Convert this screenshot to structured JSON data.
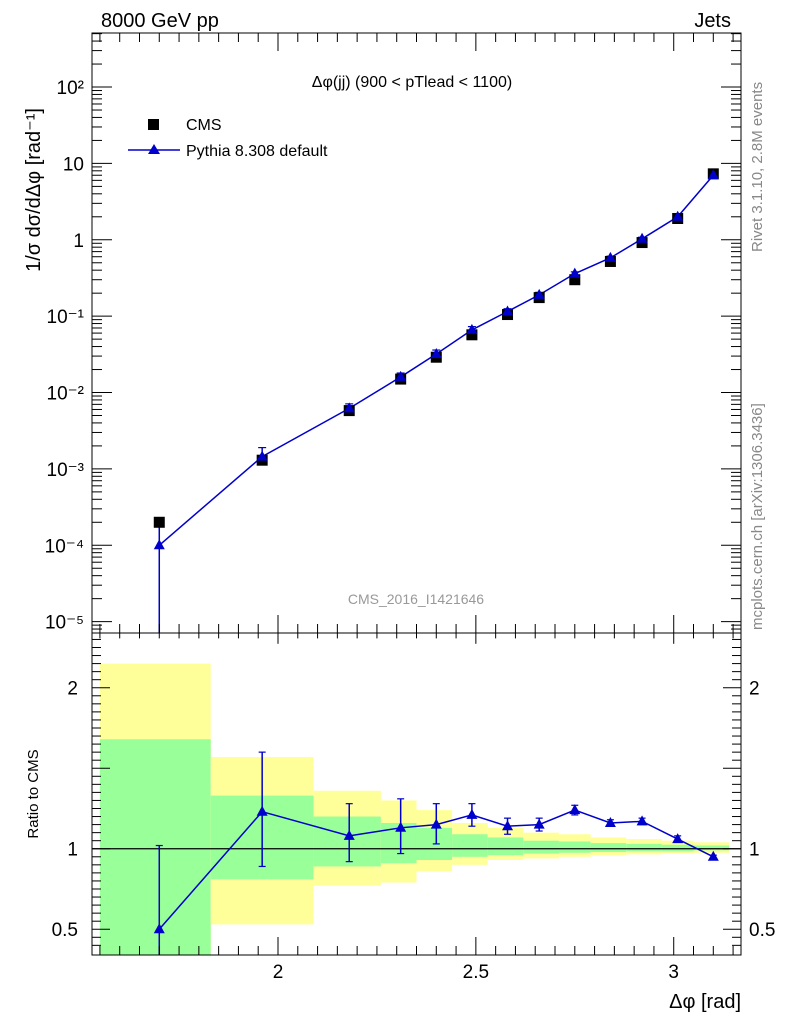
{
  "header": {
    "left": "8000 GeV pp",
    "right": "Jets"
  },
  "side_labels": {
    "rivet": "Rivet 3.1.10,  2.8M events",
    "mcplots": "mcplots.cern.ch [arXiv:1306.3436]"
  },
  "analysis_id": "CMS_2016_I1421646",
  "chart_data": [
    {
      "type": "scatter",
      "panel": "main",
      "title": "Δφ(jj) (900 < pTlead <  1100)",
      "xlabel": "Δφ [rad]",
      "ylabel": "1/σ dσ/dΔφ [rad⁻¹]",
      "y_scale": "log",
      "xlim": [
        1.53,
        3.17
      ],
      "ylim": [
        7.1e-06,
        510
      ],
      "y_ticks": [
        1e-05,
        0.0001,
        0.001,
        0.01,
        0.1,
        1,
        10,
        100
      ],
      "y_tick_labels": [
        "10⁻⁵",
        "10⁻⁴",
        "10⁻³",
        "10⁻²",
        "10⁻¹",
        "1",
        "10",
        "10²"
      ],
      "legend": [
        "CMS",
        "Pythia 8.308 default"
      ],
      "legend_position": "top-left",
      "series": [
        {
          "name": "CMS",
          "marker": "square",
          "color": "#000000",
          "x": [
            1.7,
            1.96,
            2.18,
            2.31,
            2.4,
            2.49,
            2.58,
            2.66,
            2.75,
            2.84,
            2.92,
            3.01,
            3.1
          ],
          "y": [
            0.0002,
            0.0013,
            0.0058,
            0.015,
            0.029,
            0.057,
            0.105,
            0.175,
            0.3,
            0.52,
            0.92,
            1.9,
            7.3
          ]
        },
        {
          "name": "Pythia 8.308 default",
          "marker": "triangle",
          "color": "#0000cc",
          "x": [
            1.7,
            1.96,
            2.18,
            2.31,
            2.4,
            2.49,
            2.58,
            2.66,
            2.75,
            2.84,
            2.92,
            3.01,
            3.1
          ],
          "y": [
            0.0001,
            0.00145,
            0.0062,
            0.016,
            0.032,
            0.066,
            0.115,
            0.19,
            0.36,
            0.58,
            1.03,
            2.0,
            7.0
          ],
          "y_err_low": [
            9.29e-05,
            0.00026,
            0.0009,
            0.002,
            0.004,
            0.007,
            0.01,
            0.015,
            0.02,
            0.03,
            0.05,
            0.1,
            0.2
          ],
          "y_err_high": [
            0.0001,
            0.00045,
            0.0009,
            0.002,
            0.004,
            0.007,
            0.01,
            0.015,
            0.02,
            0.03,
            0.05,
            0.1,
            0.2
          ]
        }
      ]
    },
    {
      "type": "line",
      "panel": "ratio",
      "ylabel": "Ratio to CMS",
      "xlabel": "Δφ [rad]",
      "xlim": [
        1.53,
        3.17
      ],
      "ylim": [
        0.34,
        2.34
      ],
      "x_ticks": [
        2,
        2.5,
        3
      ],
      "x_tick_labels": [
        "2",
        "2.5",
        "3"
      ],
      "y_ticks": [
        0.5,
        1,
        2
      ],
      "y_tick_labels": [
        "0.5",
        "1",
        "2"
      ],
      "reference_line": 1,
      "bands": {
        "yellow_color": "#ffff99",
        "green_color": "#99ff99",
        "bins": [
          {
            "x0": 1.55,
            "x1": 1.83,
            "yellow": [
              0.34,
              2.15
            ],
            "green": [
              0.34,
              1.68
            ]
          },
          {
            "x0": 1.83,
            "x1": 2.09,
            "yellow": [
              0.53,
              1.57
            ],
            "green": [
              0.81,
              1.33
            ]
          },
          {
            "x0": 2.09,
            "x1": 2.26,
            "yellow": [
              0.77,
              1.36
            ],
            "green": [
              0.89,
              1.2
            ]
          },
          {
            "x0": 2.26,
            "x1": 2.35,
            "yellow": [
              0.79,
              1.3
            ],
            "green": [
              0.91,
              1.16
            ]
          },
          {
            "x0": 2.35,
            "x1": 2.44,
            "yellow": [
              0.86,
              1.24
            ],
            "green": [
              0.93,
              1.13
            ]
          },
          {
            "x0": 2.44,
            "x1": 2.53,
            "yellow": [
              0.9,
              1.16
            ],
            "green": [
              0.95,
              1.09
            ]
          },
          {
            "x0": 2.53,
            "x1": 2.62,
            "yellow": [
              0.93,
              1.13
            ],
            "green": [
              0.96,
              1.07
            ]
          },
          {
            "x0": 2.62,
            "x1": 2.71,
            "yellow": [
              0.94,
              1.1
            ],
            "green": [
              0.97,
              1.05
            ]
          },
          {
            "x0": 2.71,
            "x1": 2.79,
            "yellow": [
              0.95,
              1.09
            ],
            "green": [
              0.975,
              1.045
            ]
          },
          {
            "x0": 2.79,
            "x1": 2.88,
            "yellow": [
              0.96,
              1.07
            ],
            "green": [
              0.98,
              1.035
            ]
          },
          {
            "x0": 2.88,
            "x1": 2.97,
            "yellow": [
              0.965,
              1.06
            ],
            "green": [
              0.985,
              1.03
            ]
          },
          {
            "x0": 2.97,
            "x1": 3.05,
            "yellow": [
              0.97,
              1.05
            ],
            "green": [
              0.985,
              1.025
            ]
          },
          {
            "x0": 3.05,
            "x1": 3.14,
            "yellow": [
              0.975,
              1.04
            ],
            "green": [
              0.99,
              1.02
            ]
          }
        ]
      },
      "series": [
        {
          "name": "Pythia 8.308 default",
          "color": "#0000cc",
          "x": [
            1.7,
            1.96,
            2.18,
            2.31,
            2.4,
            2.49,
            2.58,
            2.66,
            2.75,
            2.84,
            2.92,
            3.01,
            3.1
          ],
          "y": [
            0.5,
            1.23,
            1.08,
            1.13,
            1.15,
            1.21,
            1.14,
            1.15,
            1.24,
            1.16,
            1.17,
            1.06,
            0.95
          ],
          "y_err_low": [
            0.16,
            0.34,
            0.16,
            0.16,
            0.12,
            0.07,
            0.05,
            0.04,
            0.03,
            0.02,
            0.02,
            0.02,
            0.01
          ],
          "y_err_high": [
            0.52,
            0.37,
            0.2,
            0.18,
            0.13,
            0.07,
            0.05,
            0.04,
            0.03,
            0.02,
            0.02,
            0.02,
            0.01
          ]
        }
      ]
    }
  ]
}
